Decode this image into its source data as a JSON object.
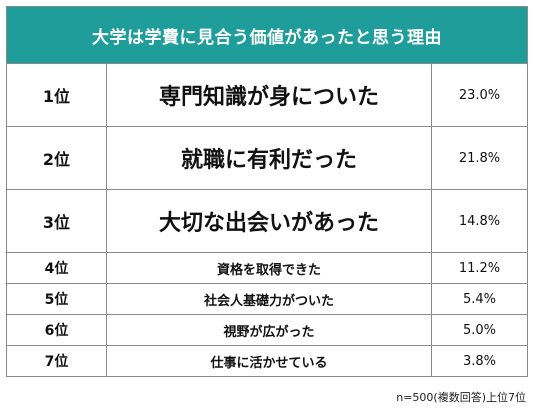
{
  "chart_data": {
    "type": "table",
    "title": "大学は学費に見合う価値があったと思う理由",
    "rows": [
      {
        "rank": "1位",
        "reason": "専門知識が身についた",
        "percent": "23.0%",
        "value": 23.0
      },
      {
        "rank": "2位",
        "reason": "就職に有利だった",
        "percent": "21.8%",
        "value": 21.8
      },
      {
        "rank": "3位",
        "reason": "大切な出会いがあった",
        "percent": "14.8%",
        "value": 14.8
      },
      {
        "rank": "4位",
        "reason": "資格を取得できた",
        "percent": "11.2%",
        "value": 11.2
      },
      {
        "rank": "5位",
        "reason": "社会人基礎力がついた",
        "percent": "5.4%",
        "value": 5.4
      },
      {
        "rank": "6位",
        "reason": "視野が広がった",
        "percent": "5.0%",
        "value": 5.0
      },
      {
        "rank": "7位",
        "reason": "仕事に活かせている",
        "percent": "3.8%",
        "value": 3.8
      }
    ],
    "footnote": "n=500(複数回答)上位7位",
    "header_color": "#1f9d9a"
  }
}
